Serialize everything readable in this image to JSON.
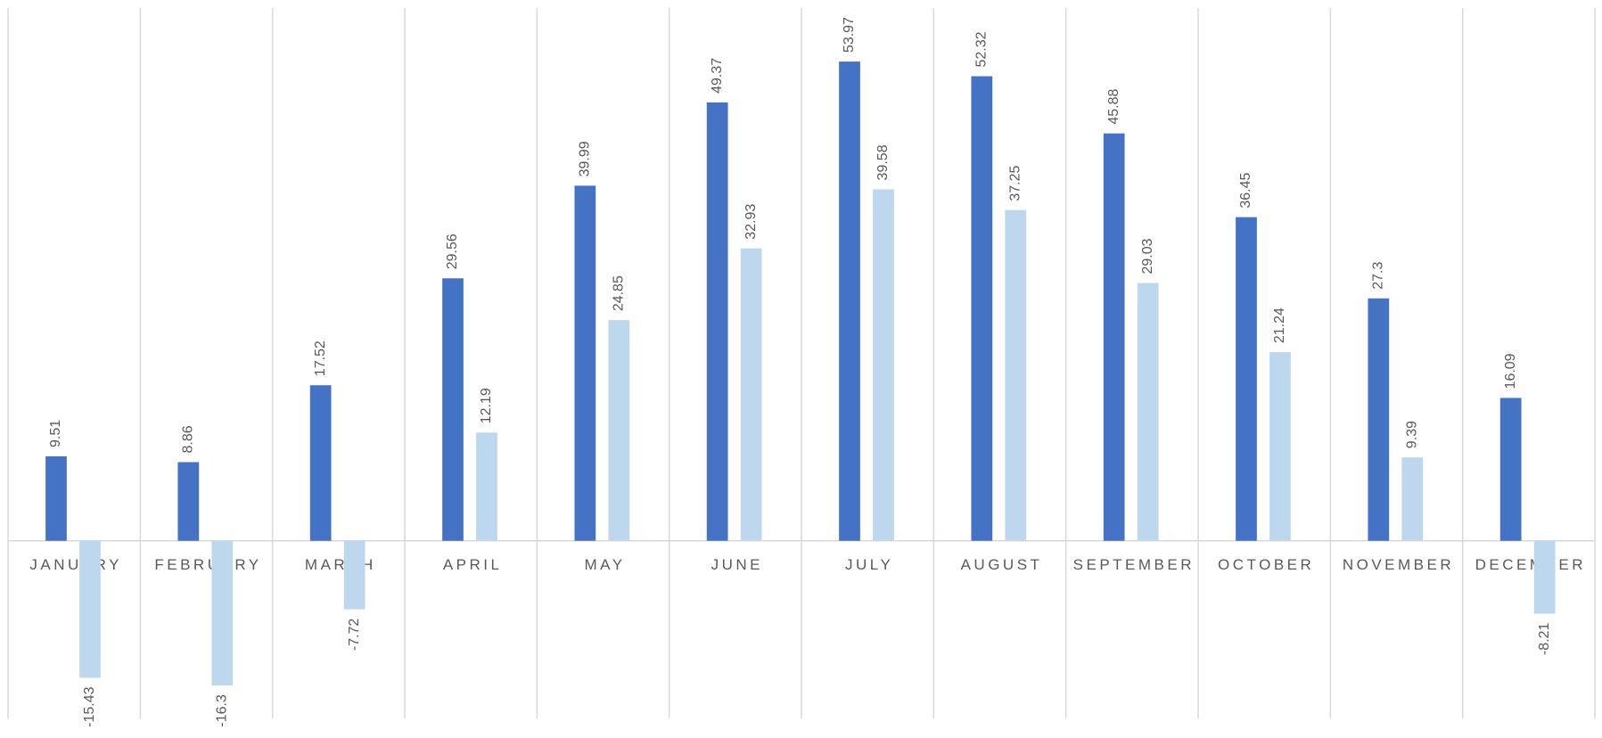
{
  "chart_data": {
    "type": "bar",
    "categories": [
      "JANUARY",
      "FEBRUARY",
      "MARCH",
      "APRIL",
      "MAY",
      "JUNE",
      "JULY",
      "AUGUST",
      "SEPTEMBER",
      "OCTOBER",
      "NOVEMBER",
      "DECEMBER"
    ],
    "series": [
      {
        "color": "#4472c4",
        "values": [
          9.51,
          8.86,
          17.52,
          29.56,
          39.99,
          49.37,
          53.97,
          52.32,
          45.88,
          36.45,
          27.3,
          16.09
        ]
      },
      {
        "color": "#bdd7ee",
        "values": [
          -15.43,
          -16.3,
          -7.72,
          12.19,
          24.85,
          32.93,
          39.58,
          37.25,
          29.03,
          21.24,
          9.39,
          -8.21
        ]
      }
    ],
    "ylim": [
      -20,
      60
    ],
    "grid": true
  }
}
